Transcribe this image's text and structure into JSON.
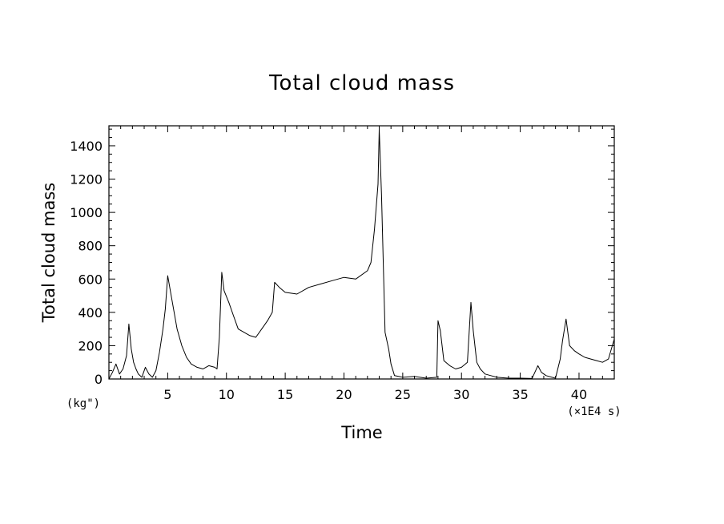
{
  "chart_data": {
    "type": "line",
    "title": "Total cloud mass",
    "xlabel": "Time",
    "ylabel": "Total cloud mass",
    "y_unit_label": "(kg\")",
    "x_unit_label": "(×1E4 s)",
    "xlim": [
      0,
      43
    ],
    "ylim": [
      0,
      1520
    ],
    "x_ticks": [
      5,
      10,
      15,
      20,
      25,
      30,
      35,
      40
    ],
    "x_tick_labels": [
      "5",
      "10",
      "15",
      "20",
      "25",
      "30",
      "35",
      "40"
    ],
    "y_ticks": [
      0,
      200,
      400,
      600,
      800,
      1000,
      1200,
      1400
    ],
    "y_tick_labels": [
      "0",
      "200",
      "400",
      "600",
      "800",
      "1000",
      "1200",
      "1400"
    ],
    "grid": false,
    "series": [
      {
        "color": "#000000",
        "x": [
          0,
          0.3,
          0.6,
          0.9,
          1.2,
          1.5,
          1.7,
          1.9,
          2.1,
          2.3,
          2.5,
          2.8,
          3.1,
          3.4,
          3.7,
          4.0,
          4.3,
          4.6,
          4.8,
          5.0,
          5.2,
          5.5,
          5.8,
          6.2,
          6.6,
          7.0,
          7.5,
          8.0,
          8.5,
          9.0,
          9.2,
          9.4,
          9.6,
          9.8,
          10.2,
          10.6,
          11.0,
          11.5,
          12.0,
          12.5,
          13.0,
          13.5,
          13.9,
          14.1,
          14.5,
          15.0,
          16.0,
          17.0,
          18.0,
          19.0,
          20.0,
          21.0,
          22.0,
          22.3,
          22.6,
          22.9,
          23.0,
          23.2,
          23.5,
          23.8,
          24.0,
          24.3,
          25.0,
          26.0,
          27.0,
          27.9,
          28.0,
          28.2,
          28.5,
          29.0,
          29.5,
          30.0,
          30.5,
          30.8,
          31.0,
          31.3,
          31.6,
          32.0,
          32.5,
          33.0,
          34.0,
          35.0,
          36.0,
          36.5,
          36.8,
          37.2,
          37.7,
          38.0,
          38.4,
          38.6,
          38.9,
          39.2,
          39.6,
          40.0,
          40.5,
          41.0,
          41.5,
          42.0,
          42.5,
          43.0
        ],
        "y": [
          0,
          40,
          90,
          30,
          60,
          140,
          330,
          180,
          100,
          60,
          30,
          10,
          70,
          30,
          10,
          50,
          160,
          300,
          420,
          620,
          540,
          420,
          300,
          200,
          130,
          90,
          70,
          60,
          80,
          70,
          60,
          250,
          640,
          530,
          460,
          380,
          300,
          280,
          260,
          250,
          300,
          350,
          400,
          580,
          550,
          520,
          510,
          550,
          570,
          590,
          610,
          600,
          650,
          700,
          900,
          1170,
          1500,
          1100,
          280,
          180,
          90,
          20,
          10,
          15,
          5,
          10,
          350,
          290,
          110,
          80,
          60,
          70,
          100,
          460,
          290,
          100,
          60,
          30,
          20,
          10,
          5,
          5,
          3,
          80,
          40,
          20,
          10,
          5,
          120,
          230,
          360,
          200,
          170,
          150,
          130,
          120,
          110,
          100,
          120,
          240
        ]
      }
    ]
  }
}
